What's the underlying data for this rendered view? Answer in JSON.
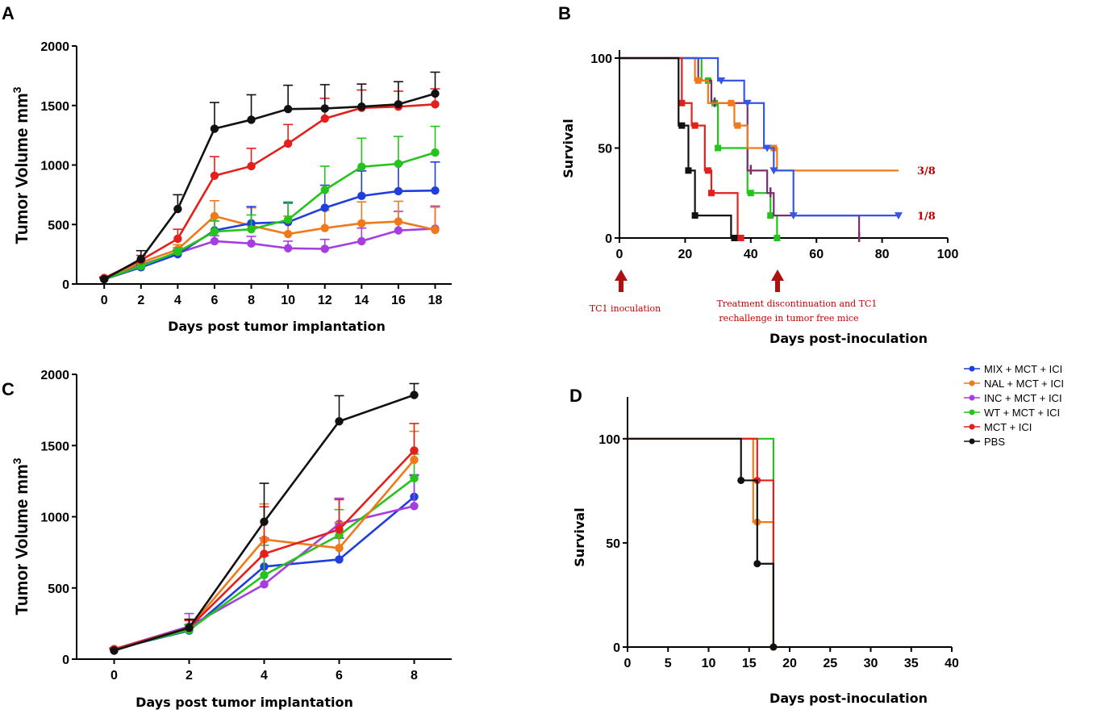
{
  "colors": {
    "MIX": "#1f3fdc",
    "NAL": "#f07a1a",
    "INC": "#a63de0",
    "WT": "#24c41c",
    "MCT": "#e3201c",
    "PBS": "#111111",
    "annotation": "#c00000",
    "survMIX": "#3556e8",
    "survNAL": "#f07a1a",
    "survINC": "#7a2e70",
    "survWT": "#24c41c",
    "survMCT": "#e3201c",
    "survPBS": "#111111"
  },
  "legend": [
    {
      "key": "MIX",
      "label": "MIX + MCT + ICI"
    },
    {
      "key": "NAL",
      "label": "NAL + MCT + ICI"
    },
    {
      "key": "INC",
      "label": "INC + MCT + ICI"
    },
    {
      "key": "WT",
      "label": "WT + MCT + ICI"
    },
    {
      "key": "MCT",
      "label": "MCT + ICI"
    },
    {
      "key": "PBS",
      "label": "PBS"
    }
  ],
  "chart_data": [
    {
      "panel": "A",
      "type": "line",
      "xlabel": "Days post tumor implantation",
      "ylabel": "Tumor Volume mm",
      "ylabel_sup": "3",
      "x": [
        0,
        2,
        4,
        6,
        8,
        10,
        12,
        14,
        16,
        18
      ],
      "xlim": [
        0,
        18
      ],
      "ylim": [
        0,
        2000
      ],
      "xticks": [
        0,
        2,
        4,
        6,
        8,
        10,
        12,
        14,
        16,
        18
      ],
      "yticks": [
        0,
        500,
        1000,
        1500,
        2000
      ],
      "series": [
        {
          "key": "INC",
          "name": "INC + MCT + ICI",
          "values": [
            45,
            160,
            260,
            360,
            340,
            300,
            295,
            360,
            450,
            465
          ],
          "errors": [
            10,
            20,
            30,
            45,
            60,
            60,
            80,
            110,
            160,
            190
          ]
        },
        {
          "key": "NAL",
          "name": "NAL + MCT + ICI",
          "values": [
            50,
            180,
            290,
            570,
            490,
            420,
            470,
            510,
            525,
            455
          ],
          "errors": [
            10,
            25,
            40,
            130,
            150,
            150,
            150,
            180,
            170,
            190
          ]
        },
        {
          "key": "MIX",
          "name": "MIX + MCT + ICI",
          "values": [
            40,
            140,
            250,
            450,
            510,
            520,
            640,
            740,
            780,
            785
          ],
          "errors": [
            8,
            20,
            30,
            80,
            140,
            160,
            190,
            210,
            230,
            240
          ]
        },
        {
          "key": "WT",
          "name": "WT + MCT + ICI",
          "values": [
            42,
            150,
            270,
            440,
            460,
            540,
            790,
            985,
            1010,
            1105
          ],
          "errors": [
            8,
            25,
            35,
            90,
            120,
            150,
            200,
            240,
            230,
            220
          ]
        },
        {
          "key": "MCT",
          "name": "MCT + ICI",
          "values": [
            50,
            200,
            380,
            910,
            990,
            1180,
            1390,
            1480,
            1490,
            1510
          ],
          "errors": [
            10,
            40,
            80,
            160,
            150,
            160,
            170,
            150,
            130,
            130
          ]
        },
        {
          "key": "PBS",
          "name": "PBS",
          "values": [
            40,
            210,
            630,
            1305,
            1380,
            1470,
            1475,
            1490,
            1510,
            1600
          ],
          "errors": [
            10,
            70,
            120,
            220,
            210,
            200,
            200,
            190,
            190,
            180
          ]
        }
      ]
    },
    {
      "panel": "B",
      "type": "line",
      "xlabel": "Days post-inoculation",
      "ylabel": "Survival",
      "xlim": [
        0,
        100
      ],
      "ylim": [
        0,
        100
      ],
      "xticks": [
        0,
        20,
        40,
        60,
        80,
        100
      ],
      "yticks": [
        0,
        50,
        100
      ],
      "annotations": {
        "left_arrow": "TC1 inoculation",
        "right_arrow_line1": "Treatment discontinuation  and TC1",
        "right_arrow_line2": "rechallenge in tumor free mice",
        "frac_top": "3/8",
        "frac_bottom": "1/8"
      },
      "series": [
        {
          "key": "survWT",
          "name": "WT + MCT + ICI",
          "steps": [
            [
              0,
              100
            ],
            [
              25,
              100
            ],
            [
              25,
              87.5
            ],
            [
              28,
              87.5
            ],
            [
              28,
              75
            ],
            [
              30,
              75
            ],
            [
              30,
              50
            ],
            [
              39,
              50
            ],
            [
              39,
              25
            ],
            [
              46,
              25
            ],
            [
              46,
              12.5
            ],
            [
              48,
              12.5
            ],
            [
              48,
              0
            ]
          ],
          "markers": [
            [
              27,
              87.5
            ],
            [
              29,
              75
            ],
            [
              30,
              50
            ],
            [
              40,
              25
            ],
            [
              46,
              12.5
            ],
            [
              48,
              0
            ]
          ]
        },
        {
          "key": "survINC",
          "name": "INC + MCT + ICI",
          "steps": [
            [
              0,
              100
            ],
            [
              24,
              100
            ],
            [
              24,
              87.5
            ],
            [
              28,
              87.5
            ],
            [
              28,
              75
            ],
            [
              39,
              75
            ],
            [
              39,
              37.5
            ],
            [
              45,
              37.5
            ],
            [
              45,
              25
            ],
            [
              47,
              25
            ],
            [
              47,
              12.5
            ],
            [
              73,
              12.5
            ],
            [
              73,
              0
            ]
          ],
          "markers": [
            [
              29,
              75
            ],
            [
              40,
              37.5
            ],
            [
              46,
              25
            ],
            [
              73,
              0
            ]
          ]
        },
        {
          "key": "survNAL",
          "name": "NAL + MCT + ICI",
          "steps": [
            [
              0,
              100
            ],
            [
              23,
              100
            ],
            [
              23,
              87.5
            ],
            [
              27,
              87.5
            ],
            [
              27,
              75
            ],
            [
              35,
              75
            ],
            [
              35,
              62.5
            ],
            [
              39,
              62.5
            ],
            [
              39,
              50
            ],
            [
              48,
              50
            ],
            [
              48,
              37.5
            ],
            [
              85,
              37.5
            ]
          ],
          "markers": [
            [
              24,
              87.5
            ],
            [
              34,
              75
            ],
            [
              36,
              62.5
            ],
            [
              47,
              50
            ]
          ]
        },
        {
          "key": "survMIX",
          "name": "MIX + MCT + ICI",
          "steps": [
            [
              0,
              100
            ],
            [
              30,
              100
            ],
            [
              30,
              87.5
            ],
            [
              38,
              87.5
            ],
            [
              38,
              75
            ],
            [
              44,
              75
            ],
            [
              44,
              50
            ],
            [
              47,
              50
            ],
            [
              47,
              37.5
            ],
            [
              53,
              37.5
            ],
            [
              53,
              12.5
            ],
            [
              85,
              12.5
            ]
          ],
          "markers": [
            [
              31,
              87.5
            ],
            [
              39,
              75
            ],
            [
              45,
              50
            ],
            [
              47,
              37.5
            ],
            [
              53,
              12.5
            ],
            [
              85,
              12.5
            ]
          ]
        },
        {
          "key": "survMCT",
          "name": "MCT + ICI",
          "steps": [
            [
              0,
              100
            ],
            [
              19,
              100
            ],
            [
              19,
              75
            ],
            [
              22,
              75
            ],
            [
              22,
              62.5
            ],
            [
              26,
              62.5
            ],
            [
              26,
              37.5
            ],
            [
              28,
              37.5
            ],
            [
              28,
              25
            ],
            [
              36,
              25
            ],
            [
              36,
              0
            ],
            [
              37,
              0
            ]
          ],
          "markers": [
            [
              19,
              75
            ],
            [
              23,
              62.5
            ],
            [
              27,
              37.5
            ],
            [
              28,
              25
            ],
            [
              37,
              0
            ]
          ]
        },
        {
          "key": "survPBS",
          "name": "PBS",
          "steps": [
            [
              0,
              100
            ],
            [
              18,
              100
            ],
            [
              18,
              62.5
            ],
            [
              21,
              62.5
            ],
            [
              21,
              37.5
            ],
            [
              23,
              37.5
            ],
            [
              23,
              12.5
            ],
            [
              34,
              12.5
            ],
            [
              34,
              0
            ],
            [
              35,
              0
            ]
          ],
          "markers": [
            [
              19,
              62.5
            ],
            [
              21,
              37.5
            ],
            [
              23,
              12.5
            ],
            [
              35,
              0
            ]
          ]
        }
      ]
    },
    {
      "panel": "C",
      "type": "line",
      "xlabel": "Days post tumor implantation",
      "ylabel": "Tumor Volume mm",
      "ylabel_sup": "3",
      "x": [
        0,
        2,
        4,
        6,
        8
      ],
      "xlim": [
        -1,
        9
      ],
      "ylim": [
        0,
        2000
      ],
      "xticks": [
        0,
        2,
        4,
        6,
        8
      ],
      "yticks": [
        0,
        500,
        1000,
        1500,
        2000
      ],
      "series": [
        {
          "key": "MIX",
          "name": "MIX + MCT + ICI",
          "values": [
            70,
            200,
            650,
            700,
            1140
          ],
          "errors": [
            10,
            40,
            200,
            150,
            150
          ]
        },
        {
          "key": "INC",
          "name": "INC + MCT + ICI",
          "values": [
            70,
            230,
            525,
            950,
            1075
          ],
          "errors": [
            10,
            90,
            200,
            180,
            220
          ]
        },
        {
          "key": "WT",
          "name": "WT + MCT + ICI",
          "values": [
            70,
            205,
            590,
            870,
            1270
          ],
          "errors": [
            10,
            40,
            210,
            180,
            170
          ]
        },
        {
          "key": "NAL",
          "name": "NAL + MCT + ICI",
          "values": [
            70,
            220,
            840,
            780,
            1400
          ],
          "errors": [
            10,
            60,
            250,
            180,
            200
          ]
        },
        {
          "key": "MCT",
          "name": "MCT + ICI",
          "values": [
            70,
            220,
            740,
            910,
            1465
          ],
          "errors": [
            10,
            50,
            330,
            210,
            190
          ]
        },
        {
          "key": "PBS",
          "name": "PBS",
          "values": [
            60,
            220,
            965,
            1670,
            1855
          ],
          "errors": [
            10,
            60,
            270,
            180,
            80
          ]
        }
      ]
    },
    {
      "panel": "D",
      "type": "line",
      "xlabel": "Days post-inoculation",
      "ylabel": "Survival",
      "xlim": [
        0,
        40
      ],
      "ylim": [
        0,
        110
      ],
      "xticks": [
        0,
        5,
        10,
        15,
        20,
        25,
        30,
        35,
        40
      ],
      "yticks": [
        0,
        50,
        100
      ],
      "series": [
        {
          "key": "WT",
          "name": "WT + MCT + ICI",
          "steps": [
            [
              0,
              100
            ],
            [
              18,
              100
            ],
            [
              18,
              0
            ]
          ],
          "markers": [
            [
              18,
              0
            ]
          ]
        },
        {
          "key": "NAL",
          "name": "NAL + MCT + ICI",
          "steps": [
            [
              0,
              100
            ],
            [
              15.5,
              100
            ],
            [
              15.5,
              60
            ],
            [
              18,
              60
            ],
            [
              18,
              0
            ]
          ],
          "markers": [
            [
              16,
              60
            ],
            [
              18,
              0
            ]
          ]
        },
        {
          "key": "MCT",
          "name": "MCT + ICI",
          "steps": [
            [
              0,
              100
            ],
            [
              16,
              100
            ],
            [
              16,
              80
            ],
            [
              18,
              80
            ],
            [
              18,
              0
            ]
          ],
          "markers": [
            [
              16,
              80
            ],
            [
              18,
              0
            ]
          ]
        },
        {
          "key": "PBS",
          "name": "PBS",
          "steps": [
            [
              0,
              100
            ],
            [
              14,
              100
            ],
            [
              14,
              80
            ],
            [
              16,
              80
            ],
            [
              16,
              40
            ],
            [
              18,
              40
            ],
            [
              18,
              0
            ]
          ],
          "markers": [
            [
              14,
              80
            ],
            [
              16,
              40
            ],
            [
              18,
              0
            ]
          ]
        }
      ]
    }
  ]
}
